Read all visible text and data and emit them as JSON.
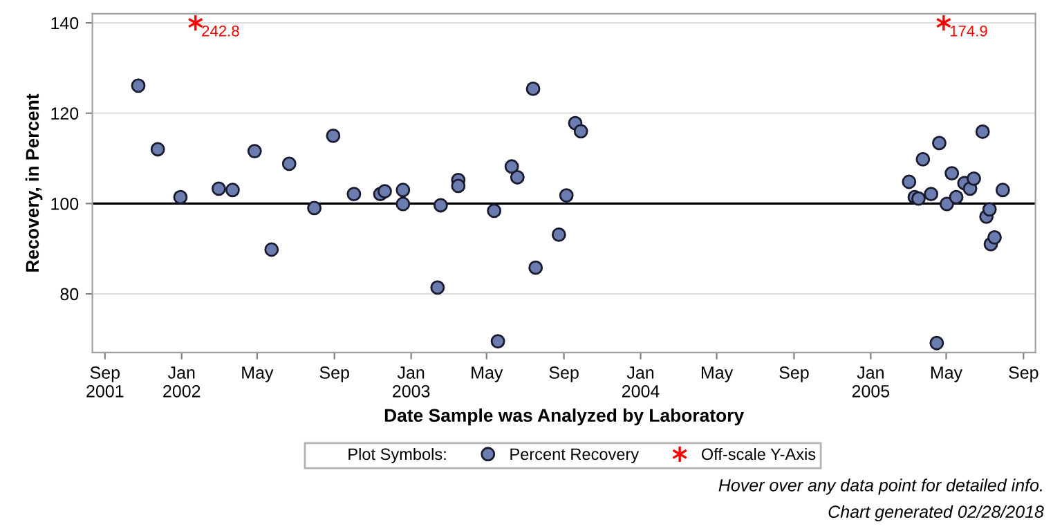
{
  "chart_data": {
    "type": "scatter",
    "xlabel": "Date Sample was Analyzed by Laboratory",
    "ylabel": "Recovery, in Percent",
    "legend_title": "Plot Symbols:",
    "legend": "bottom",
    "grid": "y",
    "xlim": [
      "2001-08-12",
      "2005-09-20"
    ],
    "ylim": [
      67,
      142
    ],
    "xticks": [
      {
        "value": "2001-09-01",
        "label": "Sep\n2001"
      },
      {
        "value": "2002-01-01",
        "label": "Jan\n2002"
      },
      {
        "value": "2002-05-01",
        "label": "May"
      },
      {
        "value": "2002-09-01",
        "label": "Sep"
      },
      {
        "value": "2003-01-01",
        "label": "Jan\n2003"
      },
      {
        "value": "2003-05-01",
        "label": "May"
      },
      {
        "value": "2003-09-01",
        "label": "Sep"
      },
      {
        "value": "2004-01-01",
        "label": "Jan\n2004"
      },
      {
        "value": "2004-05-01",
        "label": "May"
      },
      {
        "value": "2004-09-01",
        "label": "Sep"
      },
      {
        "value": "2005-01-01",
        "label": "Jan\n2005"
      },
      {
        "value": "2005-05-01",
        "label": "May"
      },
      {
        "value": "2005-09-01",
        "label": "Sep"
      }
    ],
    "yticks": [
      80,
      100,
      120,
      140
    ],
    "ref_lines": [
      {
        "axis": "y",
        "value": 100,
        "label": null,
        "color": "#000000"
      }
    ],
    "series": [
      {
        "name": "Percent Recovery",
        "color": "#6b7cb0",
        "marker": "circle",
        "x": [
          "2001-10-24",
          "2001-11-24",
          "2001-12-30",
          "2002-03-01",
          "2002-03-23",
          "2002-04-27",
          "2002-05-24",
          "2002-06-21",
          "2002-07-31",
          "2002-08-30",
          "2002-10-02",
          "2002-11-13",
          "2002-11-20",
          "2002-12-19",
          "2002-12-19",
          "2003-02-12",
          "2003-02-17",
          "2003-03-17",
          "2003-03-17",
          "2003-05-13",
          "2003-05-19",
          "2003-06-10",
          "2003-06-19",
          "2003-07-14",
          "2003-07-18",
          "2003-08-24",
          "2003-09-05",
          "2003-09-19",
          "2003-09-28",
          "2005-03-03",
          "2005-03-12",
          "2005-03-18",
          "2005-03-25",
          "2005-04-07",
          "2005-04-16",
          "2005-04-20",
          "2005-05-02",
          "2005-05-10",
          "2005-05-17",
          "2005-05-30",
          "2005-06-08",
          "2005-06-14",
          "2005-06-28",
          "2005-07-04",
          "2005-07-09",
          "2005-07-11",
          "2005-07-17",
          "2005-07-30"
        ],
        "values": [
          126.1,
          112.0,
          101.4,
          103.3,
          103.0,
          111.6,
          89.8,
          108.8,
          99.0,
          115.0,
          102.1,
          102.1,
          102.7,
          103.0,
          99.9,
          81.4,
          99.6,
          105.2,
          103.9,
          98.4,
          69.5,
          108.2,
          105.8,
          125.4,
          85.8,
          93.1,
          101.8,
          117.8,
          116.0,
          104.8,
          101.4,
          101.1,
          109.8,
          102.1,
          69.1,
          113.4,
          99.9,
          106.7,
          101.4,
          104.5,
          103.3,
          105.5,
          115.9,
          97.1,
          98.7,
          91.0,
          92.5,
          103.0
        ]
      },
      {
        "name": "Off-scale Y-Axis",
        "color": "#ff0000",
        "marker": "cross",
        "x": [
          "2002-01-23",
          "2005-04-27"
        ],
        "values": [
          140,
          140
        ]
      }
    ],
    "annotations": [
      {
        "text": "242.8",
        "x": "2002-01-23",
        "y": 140
      },
      {
        "text": "174.9",
        "x": "2005-04-27",
        "y": 140
      },
      "Hover over any data point for detailed info.",
      "Chart generated 02/28/2018"
    ]
  }
}
